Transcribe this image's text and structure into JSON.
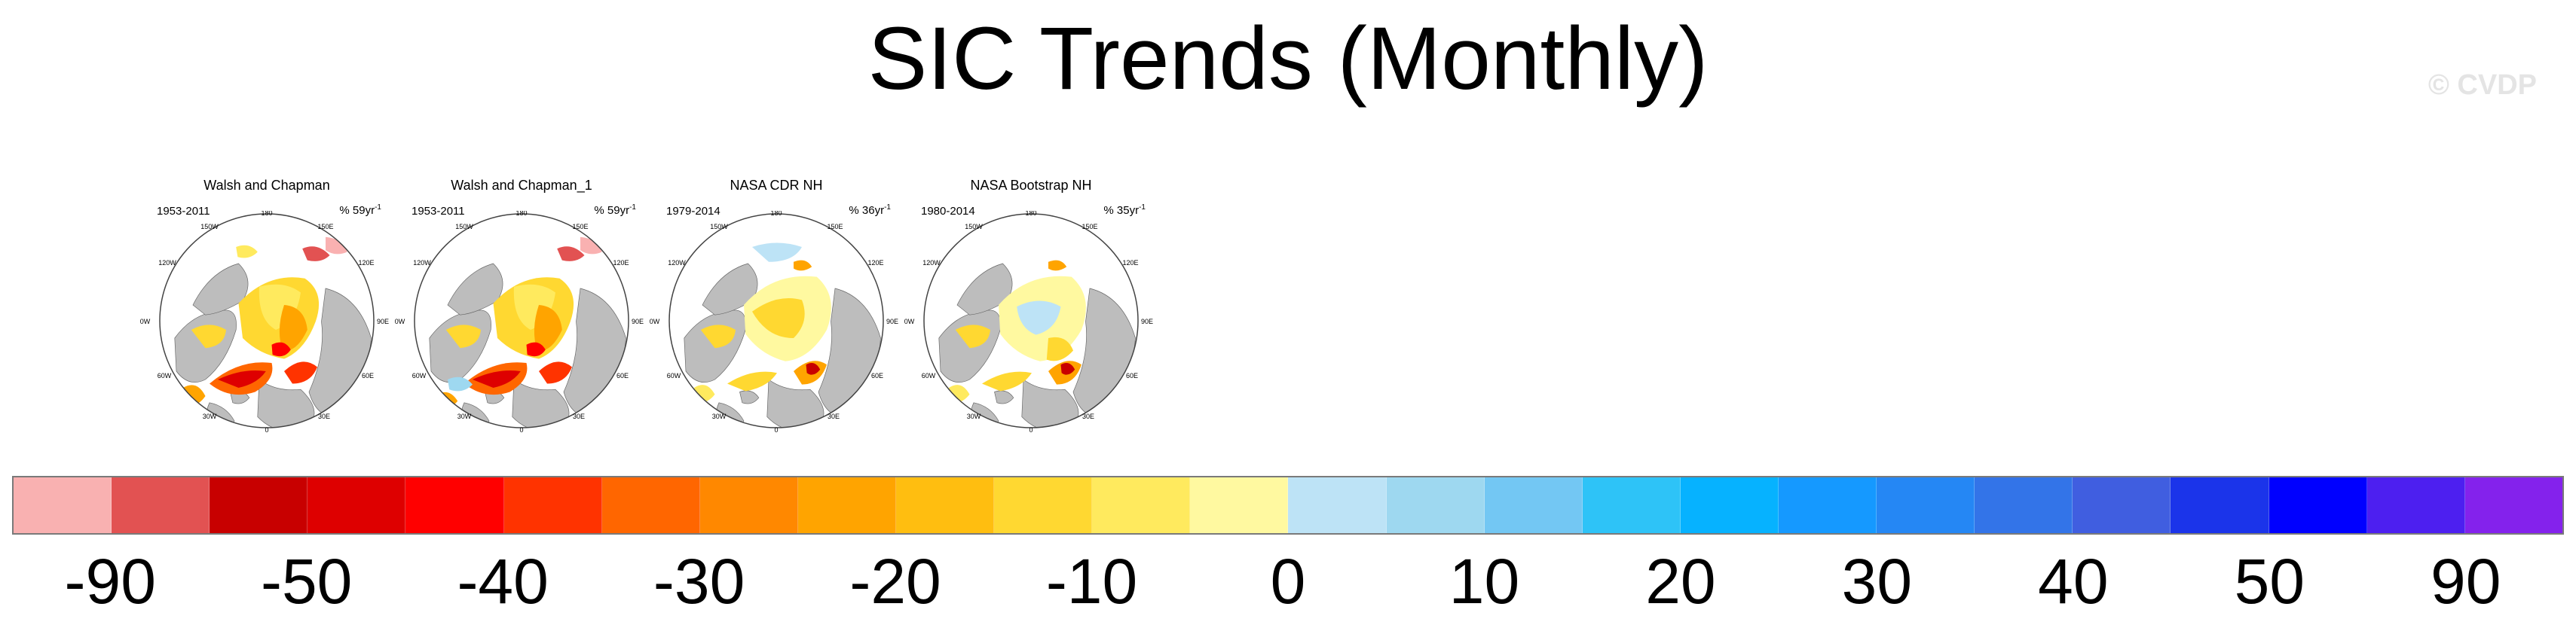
{
  "title": "SIC Trends (Monthly)",
  "watermark": "© CVDP",
  "panels": [
    {
      "title": "Walsh and Chapman",
      "years": "1953-2011",
      "rate": "% 59yr",
      "rate_exp": "-1"
    },
    {
      "title": "Walsh and Chapman_1",
      "years": "1953-2011",
      "rate": "% 59yr",
      "rate_exp": "-1"
    },
    {
      "title": "NASA CDR NH",
      "years": "1979-2014",
      "rate": "% 36yr",
      "rate_exp": "-1"
    },
    {
      "title": "NASA Bootstrap NH",
      "years": "1980-2014",
      "rate": "% 35yr",
      "rate_exp": "-1"
    }
  ],
  "map_labels": {
    "lon_top": "180",
    "lon_top_left": "150W",
    "lon_top_right": "150E",
    "lon_upper_left": "120W",
    "lon_upper_right": "120E",
    "lon_left": "90W",
    "lon_right": "90E",
    "lon_lower_left": "60W",
    "lon_lower_right": "60E",
    "lon_bottom_left": "30W",
    "lon_bottom_right": "30E",
    "lon_bottom": "0"
  },
  "colorbar": {
    "colors": [
      "#f9b1b1",
      "#e25252",
      "#c80000",
      "#de0000",
      "#ff0000",
      "#ff3300",
      "#ff6600",
      "#ff8800",
      "#ffa400",
      "#ffbe10",
      "#ffd831",
      "#ffea5e",
      "#fff9a0",
      "#bde3f6",
      "#9ed8f0",
      "#73c7f3",
      "#2ec3f7",
      "#06b2ff",
      "#1599ff",
      "#2587f4",
      "#3374e8",
      "#405ee0",
      "#1b34ea",
      "#0000ff",
      "#4d1ff0",
      "#8422ec"
    ],
    "labels": [
      "-90",
      "-50",
      "-40",
      "-30",
      "-20",
      "-10",
      "0",
      "10",
      "20",
      "30",
      "40",
      "50",
      "90"
    ]
  }
}
